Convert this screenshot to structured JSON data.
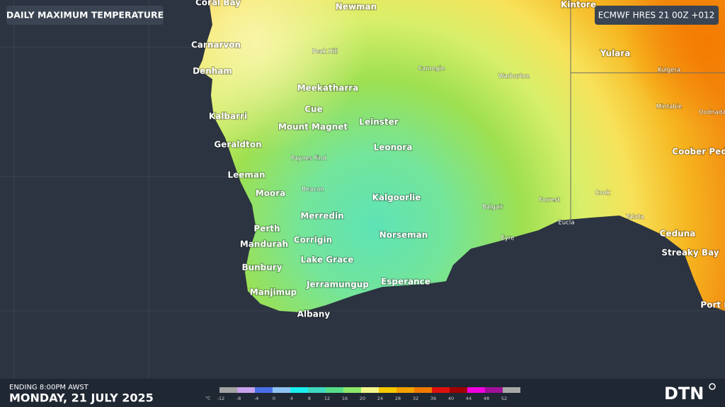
{
  "header": {
    "title": "DAILY MAXIMUM TEMPERATURE",
    "model": "ECMWF HRES 21 00Z +012"
  },
  "cities": [
    "Coral Bay",
    "Newman",
    "Kintore",
    "Carnarvon",
    "Yulara",
    "Denham",
    "Meekatharra",
    "Cue",
    "Kalbarri",
    "Leinster",
    "Mount Magnet",
    "Geraldton",
    "Leonora",
    "Coober Pedy",
    "Leeman",
    "Moora",
    "Kalgoorlie",
    "Merredin",
    "Perth",
    "Ceduna",
    "Norseman",
    "Corrigin",
    "Mandurah",
    "Streaky Bay",
    "Lake Grace",
    "Bunbury",
    "Esperance",
    "Jerramungup",
    "Manjimup",
    "Port Lincoln",
    "Albany"
  ],
  "towns": [
    "Peak Hill",
    "Carnegie",
    "Warburton",
    "Kulgera",
    "Mintabie",
    "Oodnadatta",
    "Paynes Find",
    "Beacon",
    "Cook",
    "Forrest",
    "Balgair",
    "Eucla",
    "Yalata",
    "Eyre"
  ],
  "footer": {
    "period": "ENDING 8:00PM AWST",
    "date": "MONDAY, 21 JULY 2025",
    "logo": "DTN"
  },
  "legend": {
    "unit": "°C",
    "items": [
      {
        "value": -12,
        "color": "#a3a3a3"
      },
      {
        "value": -8,
        "color": "#c9a2ec"
      },
      {
        "value": -4,
        "color": "#4b6fe8"
      },
      {
        "value": 0,
        "color": "#8fc3f2"
      },
      {
        "value": 4,
        "color": "#19eef0"
      },
      {
        "value": 8,
        "color": "#3ed8c0"
      },
      {
        "value": 12,
        "color": "#56dd8a"
      },
      {
        "value": 16,
        "color": "#8ce86a"
      },
      {
        "value": 20,
        "color": "#f2f58a"
      },
      {
        "value": 24,
        "color": "#f5c800"
      },
      {
        "value": 28,
        "color": "#f5a100"
      },
      {
        "value": 32,
        "color": "#f07a00"
      },
      {
        "value": 36,
        "color": "#e01010"
      },
      {
        "value": 40,
        "color": "#a00000"
      },
      {
        "value": 44,
        "color": "#f000e0"
      },
      {
        "value": 48,
        "color": "#a0109a"
      },
      {
        "value": 52,
        "color": "#a8a8a8"
      }
    ]
  }
}
